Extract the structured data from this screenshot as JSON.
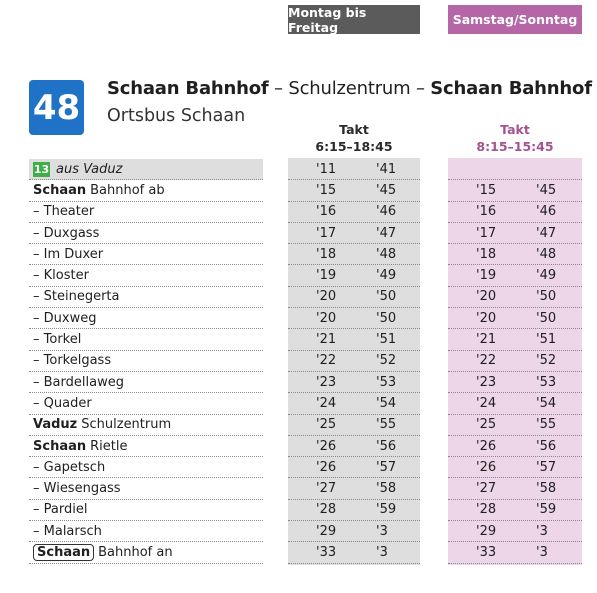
{
  "tabs": {
    "weekday": "Montag bis Freitag",
    "weekend": "Samstag/Sonntag"
  },
  "route": {
    "number": "48",
    "from": "Schaan Bahnhof",
    "sep1": " – ",
    "via": "Schulzentrum",
    "sep2": " – ",
    "to": "Schaan Bahnhof",
    "subtitle": "Ortsbus Schaan"
  },
  "columns": {
    "weekday": {
      "label": "Takt",
      "time": "6:15–18:45"
    },
    "weekend": {
      "label": "Takt",
      "time": "8:15–15:45"
    }
  },
  "connection": {
    "line": "13",
    "text": "aus Vaduz",
    "wd": [
      "'11",
      "'41"
    ]
  },
  "stops": [
    {
      "prefix": "Schaan",
      "name": "Bahnhof ab",
      "wd": [
        "'15",
        "'45"
      ],
      "we": [
        "'15",
        "'45"
      ]
    },
    {
      "name": "– Theater",
      "wd": [
        "'16",
        "'46"
      ],
      "we": [
        "'16",
        "'46"
      ]
    },
    {
      "name": "– Duxgass",
      "wd": [
        "'17",
        "'47"
      ],
      "we": [
        "'17",
        "'47"
      ]
    },
    {
      "name": "– Im Duxer",
      "wd": [
        "'18",
        "'48"
      ],
      "we": [
        "'18",
        "'48"
      ]
    },
    {
      "name": "– Kloster",
      "wd": [
        "'19",
        "'49"
      ],
      "we": [
        "'19",
        "'49"
      ]
    },
    {
      "name": "– Steinegerta",
      "wd": [
        "'20",
        "'50"
      ],
      "we": [
        "'20",
        "'50"
      ]
    },
    {
      "name": "– Duxweg",
      "wd": [
        "'20",
        "'50"
      ],
      "we": [
        "'20",
        "'50"
      ]
    },
    {
      "name": "– Torkel",
      "wd": [
        "'21",
        "'51"
      ],
      "we": [
        "'21",
        "'51"
      ]
    },
    {
      "name": "– Torkelgass",
      "wd": [
        "'22",
        "'52"
      ],
      "we": [
        "'22",
        "'52"
      ]
    },
    {
      "name": "– Bardellaweg",
      "wd": [
        "'23",
        "'53"
      ],
      "we": [
        "'23",
        "'53"
      ]
    },
    {
      "name": "– Quader",
      "wd": [
        "'24",
        "'54"
      ],
      "we": [
        "'24",
        "'54"
      ]
    },
    {
      "prefix": "Vaduz",
      "name": "Schulzentrum",
      "wd": [
        "'25",
        "'55"
      ],
      "we": [
        "'25",
        "'55"
      ]
    },
    {
      "prefix": "Schaan",
      "name": "Rietle",
      "wd": [
        "'26",
        "'56"
      ],
      "we": [
        "'26",
        "'56"
      ]
    },
    {
      "name": "– Gapetsch",
      "wd": [
        "'26",
        "'57"
      ],
      "we": [
        "'26",
        "'57"
      ]
    },
    {
      "name": "– Wiesengass",
      "wd": [
        "'27",
        "'58"
      ],
      "we": [
        "'27",
        "'58"
      ]
    },
    {
      "name": "– Pardiel",
      "wd": [
        "'28",
        "'59"
      ],
      "we": [
        "'28",
        "'59"
      ]
    },
    {
      "name": "– Malarsch",
      "wd": [
        "'29",
        "'3"
      ],
      "we": [
        "'29",
        "'3"
      ]
    },
    {
      "prefix": "Schaan",
      "prefix_boxed": true,
      "name": "Bahnhof an",
      "wd": [
        "'33",
        "'3"
      ],
      "we": [
        "'33",
        "'3"
      ]
    }
  ]
}
